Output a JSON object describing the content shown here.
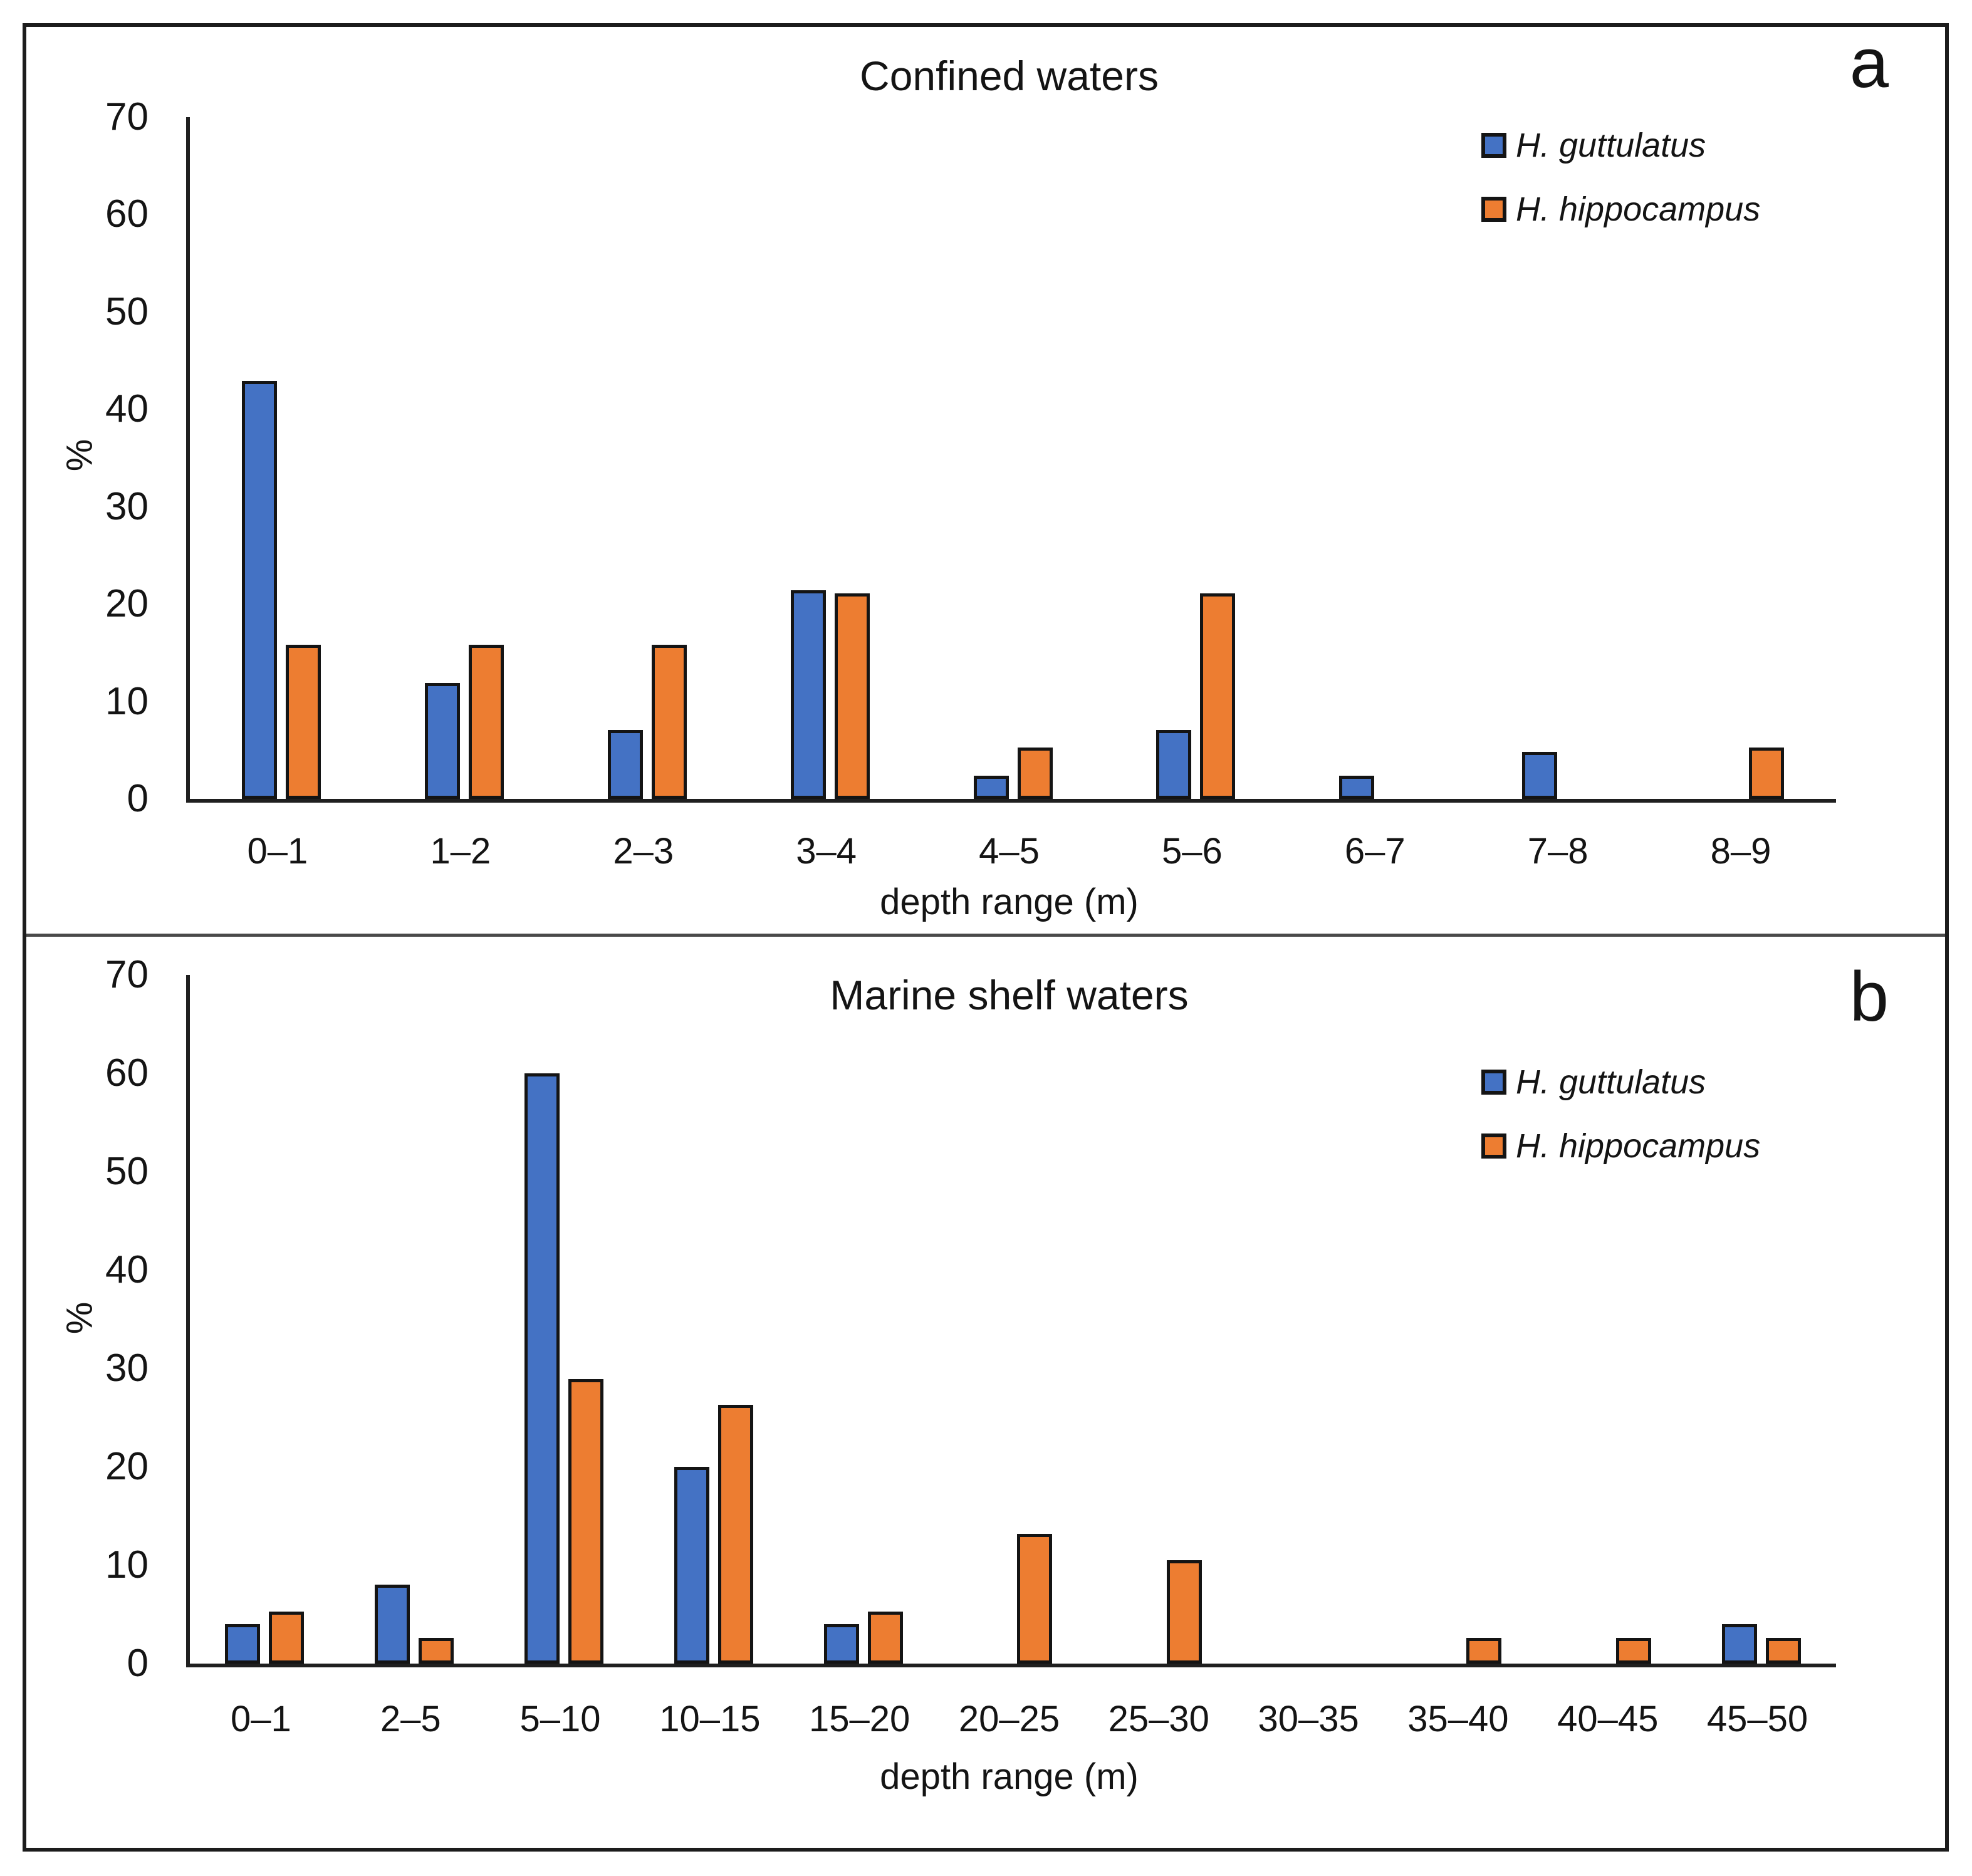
{
  "figure": {
    "background": "#ffffff",
    "border_color": "#1c1c1c",
    "divider_color": "#4a4a4a"
  },
  "colors": {
    "guttulatus_blue": "#4472C4",
    "hippocampus_orange": "#ED7D31",
    "bar_outline": "#141414",
    "axis": "#1f1f1f"
  },
  "chart_data": [
    {
      "type": "bar",
      "panel_letter": "a",
      "title": "Confined waters",
      "xlabel": "depth range (m)",
      "ylabel": "%",
      "ylim": [
        0,
        70
      ],
      "yticks": [
        0,
        10,
        20,
        30,
        40,
        50,
        60,
        70
      ],
      "grid": false,
      "legend_position": "top-right",
      "categories": [
        "0–1",
        "1–2",
        "2–3",
        "3–4",
        "4–5",
        "5–6",
        "6–7",
        "7–8",
        "8–9"
      ],
      "series": [
        {
          "name": "H. guttulatus",
          "color": "#4472C4",
          "values": [
            42.9,
            11.9,
            7.1,
            21.4,
            2.4,
            7.1,
            2.4,
            4.8,
            0
          ]
        },
        {
          "name": "H. hippocampus",
          "color": "#ED7D31",
          "values": [
            15.8,
            15.8,
            15.8,
            21.1,
            5.3,
            21.1,
            0,
            0,
            5.3
          ]
        }
      ]
    },
    {
      "type": "bar",
      "panel_letter": "b",
      "title": "Marine shelf waters",
      "xlabel": "depth range (m)",
      "ylabel": "%",
      "ylim": [
        0,
        70
      ],
      "yticks": [
        0,
        10,
        20,
        30,
        40,
        50,
        60,
        70
      ],
      "grid": false,
      "legend_position": "top-right",
      "categories": [
        "0–1",
        "2–5",
        "5–10",
        "10–15",
        "15–20",
        "20–25",
        "25–30",
        "30–35",
        "35–40",
        "40–45",
        "45–50"
      ],
      "series": [
        {
          "name": "H. guttulatus",
          "color": "#4472C4",
          "values": [
            4,
            8,
            60,
            20,
            4,
            0,
            0,
            0,
            0,
            0,
            4
          ]
        },
        {
          "name": "H. hippocampus",
          "color": "#ED7D31",
          "values": [
            5.3,
            2.6,
            28.9,
            26.3,
            5.3,
            13.2,
            10.5,
            0,
            2.6,
            2.6,
            2.6
          ]
        }
      ]
    }
  ]
}
